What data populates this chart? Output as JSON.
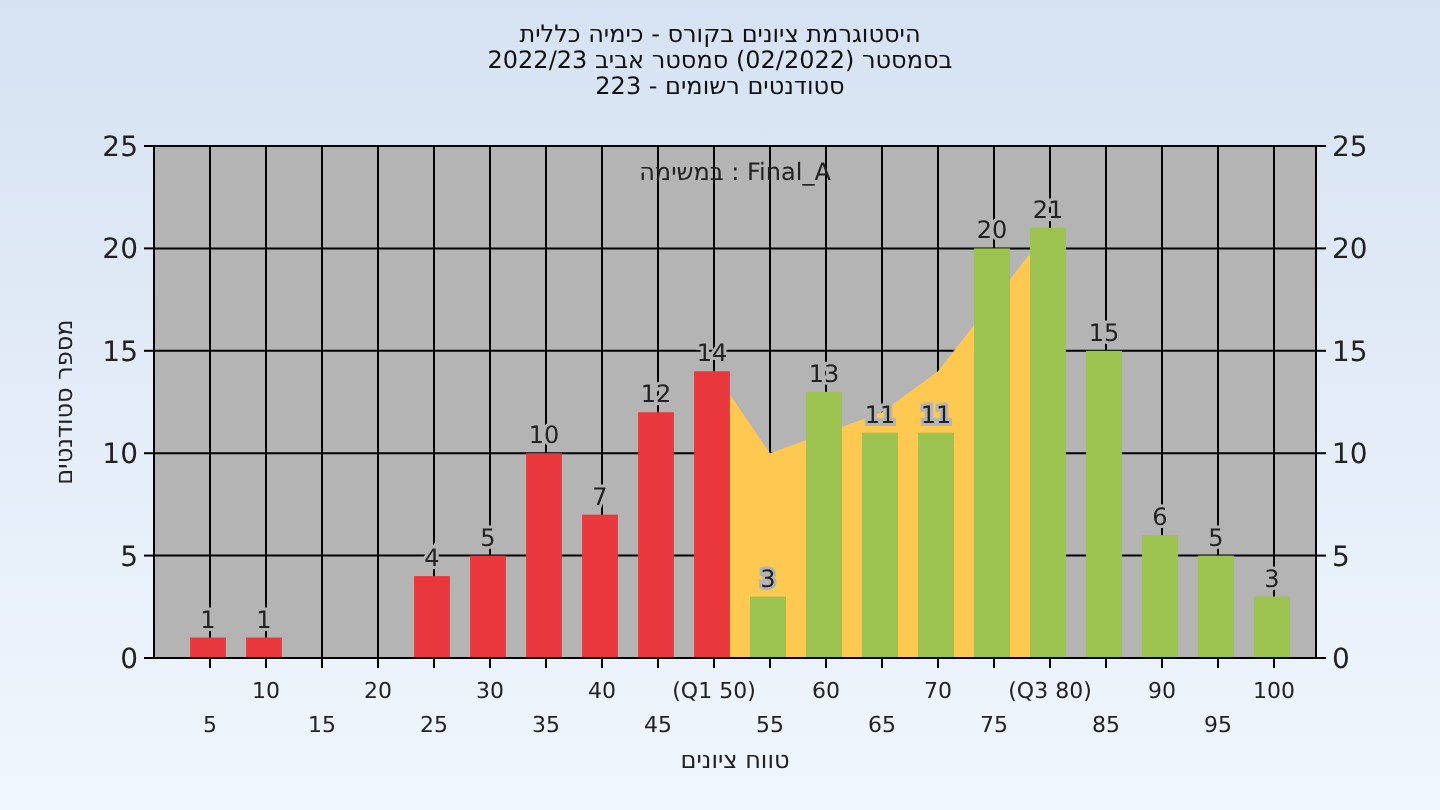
{
  "chart_data": {
    "type": "bar",
    "title": "היסטוגרמת ציונים בקורס - כימיה כללית\nבסמסטר  (02/2022)  סמסטר אביב 2022/23\nסטודנטים רשומים - 223",
    "xlabel": "טווח ציונים",
    "ylabel": "מספר סטודנטים",
    "annotations": [
      "במשימה : Final_A"
    ],
    "categories": [
      "5",
      "10",
      "15",
      "20",
      "25",
      "30",
      "35",
      "40",
      "45",
      "(Q1 50)",
      "55",
      "60",
      "65",
      "70",
      "75",
      "(Q3 80)",
      "85",
      "90",
      "95",
      "100"
    ],
    "series": [
      {
        "type": "area",
        "color": "#ffc850",
        "values": [
          null,
          null,
          null,
          null,
          null,
          null,
          null,
          null,
          null,
          14,
          10,
          null,
          12,
          14,
          null,
          21,
          null,
          null,
          null,
          null
        ]
      },
      {
        "type": "bar",
        "colors": [
          "#e8383d",
          "#e8383d",
          "#e8383d",
          "#e8383d",
          "#e8383d",
          "#e8383d",
          "#e8383d",
          "#e8383d",
          "#e8383d",
          "#e8383d",
          "#9cc24f",
          "#9cc24f",
          "#9cc24f",
          "#9cc24f",
          "#9cc24f",
          "#9cc24f",
          "#9cc24f",
          "#9cc24f",
          "#9cc24f",
          "#9cc24f"
        ],
        "values": [
          1,
          1,
          0,
          0,
          4,
          5,
          10,
          7,
          12,
          14,
          3,
          13,
          11,
          11,
          20,
          21,
          15,
          6,
          5,
          3
        ],
        "value_labels": [
          "1",
          "1",
          null,
          null,
          "4",
          "5",
          "10",
          "7",
          "12",
          "14",
          "3",
          "13",
          "11",
          "11",
          "20",
          "21",
          "15",
          "6",
          "5",
          "3"
        ]
      }
    ],
    "ylim": [
      0,
      25
    ],
    "yticks": [
      0,
      5,
      10,
      15,
      20,
      25
    ],
    "y2lim": [
      0,
      25
    ],
    "y2ticks": [
      0,
      5,
      10,
      15,
      20,
      25
    ],
    "grid": true
  }
}
